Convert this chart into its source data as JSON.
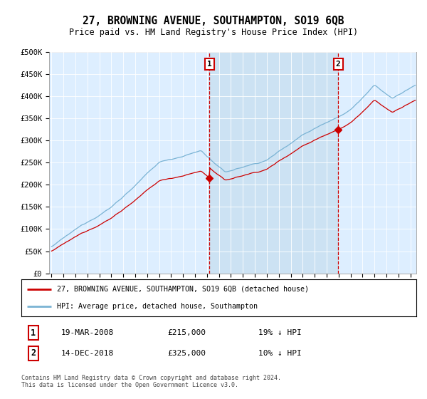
{
  "title": "27, BROWNING AVENUE, SOUTHAMPTON, SO19 6QB",
  "subtitle": "Price paid vs. HM Land Registry's House Price Index (HPI)",
  "legend_line1": "27, BROWNING AVENUE, SOUTHAMPTON, SO19 6QB (detached house)",
  "legend_line2": "HPI: Average price, detached house, Southampton",
  "annotation1_date": "19-MAR-2008",
  "annotation1_price": "£215,000",
  "annotation1_hpi": "19% ↓ HPI",
  "annotation1_year": 2008.21,
  "annotation2_date": "14-DEC-2018",
  "annotation2_price": "£325,000",
  "annotation2_hpi": "10% ↓ HPI",
  "annotation2_year": 2018.96,
  "footnote": "Contains HM Land Registry data © Crown copyright and database right 2024.\nThis data is licensed under the Open Government Licence v3.0.",
  "ylim": [
    0,
    500000
  ],
  "yticks": [
    0,
    50000,
    100000,
    150000,
    200000,
    250000,
    300000,
    350000,
    400000,
    450000,
    500000
  ],
  "ytick_labels": [
    "£0",
    "£50K",
    "£100K",
    "£150K",
    "£200K",
    "£250K",
    "£300K",
    "£350K",
    "£400K",
    "£450K",
    "£500K"
  ],
  "hpi_color": "#7ab3d4",
  "price_color": "#cc0000",
  "plot_bg_color": "#ddeeff",
  "shade_color": "#c8dff0",
  "annotation_box_color": "#cc0000",
  "xmin": 1994.8,
  "xmax": 2025.5,
  "xticks": [
    1995,
    1996,
    1997,
    1998,
    1999,
    2000,
    2001,
    2002,
    2003,
    2004,
    2005,
    2006,
    2007,
    2008,
    2009,
    2010,
    2011,
    2012,
    2013,
    2014,
    2015,
    2016,
    2017,
    2018,
    2019,
    2020,
    2021,
    2022,
    2023,
    2024,
    2025
  ]
}
